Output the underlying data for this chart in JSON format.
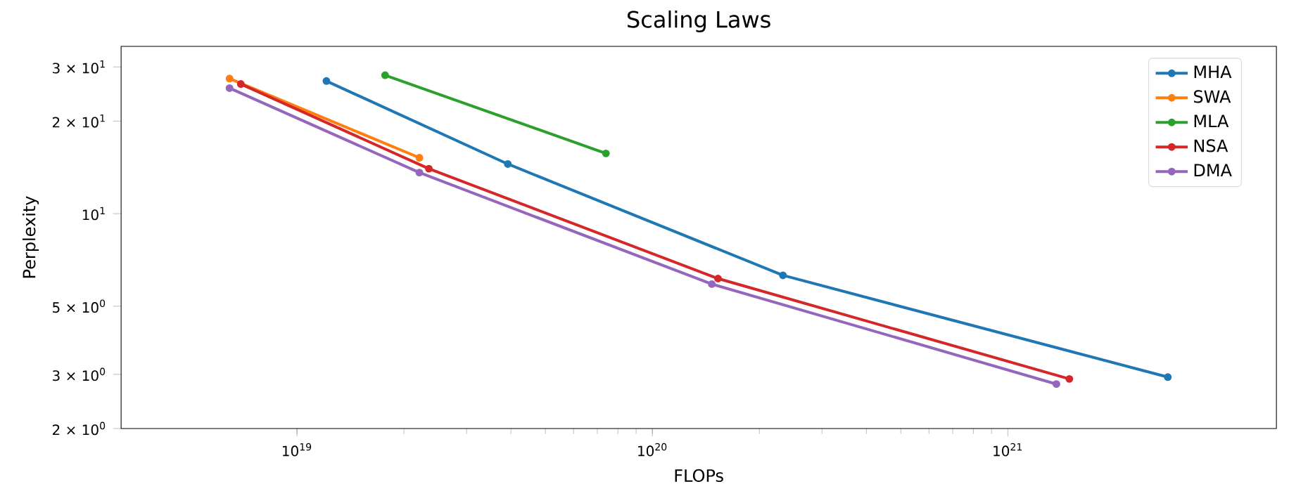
{
  "chart_data": {
    "type": "line",
    "title": "Scaling Laws",
    "xlabel": "FLOPs",
    "ylabel": "Perplexity",
    "log": "xy",
    "grid": false,
    "legend": "top right",
    "marker": "circle",
    "line_style": "solid",
    "xlim": [
      3.2e+18,
      5.7e+21
    ],
    "ylim": [
      2,
      35
    ],
    "xticks": [
      {
        "value": 1e+19,
        "label": "10$^{19}$"
      },
      {
        "value": 1e+20,
        "label": "10$^{20}$"
      },
      {
        "value": 1e+21,
        "label": "10$^{21}$"
      }
    ],
    "yticks": [
      {
        "value": 2,
        "label": "2 × 10$^{0}$"
      },
      {
        "value": 3,
        "label": "3 × 10$^{0}$"
      },
      {
        "value": 5,
        "label": "5 × 10$^{0}$"
      },
      {
        "value": 10,
        "label": "10$^{1}$"
      },
      {
        "value": 20,
        "label": "2 × 10$^{1}$"
      },
      {
        "value": 30,
        "label": "3 × 10$^{1}$"
      }
    ],
    "series": [
      {
        "name": "MHA",
        "color": "#1f77b4",
        "x": [
          1.21e+19,
          3.92e+19,
          2.33e+20,
          2.82e+21
        ],
        "values": [
          27,
          14.5,
          6.3,
          2.94
        ]
      },
      {
        "name": "SWA",
        "color": "#ff7f0e",
        "x": [
          6.46e+18,
          2.21e+19
        ],
        "values": [
          27.5,
          15.2
        ]
      },
      {
        "name": "MLA",
        "color": "#2ca02c",
        "x": [
          1.77e+19,
          7.4e+19
        ],
        "values": [
          28.2,
          15.7
        ]
      },
      {
        "name": "NSA",
        "color": "#d62728",
        "x": [
          6.95e+18,
          2.35e+19,
          1.53e+20,
          1.49e+21
        ],
        "values": [
          26.4,
          14,
          6.15,
          2.9
        ]
      },
      {
        "name": "DMA",
        "color": "#9467bd",
        "x": [
          6.46e+18,
          2.21e+19,
          1.47e+20,
          1.37e+21
        ],
        "values": [
          25.6,
          13.6,
          5.9,
          2.79
        ]
      }
    ]
  }
}
